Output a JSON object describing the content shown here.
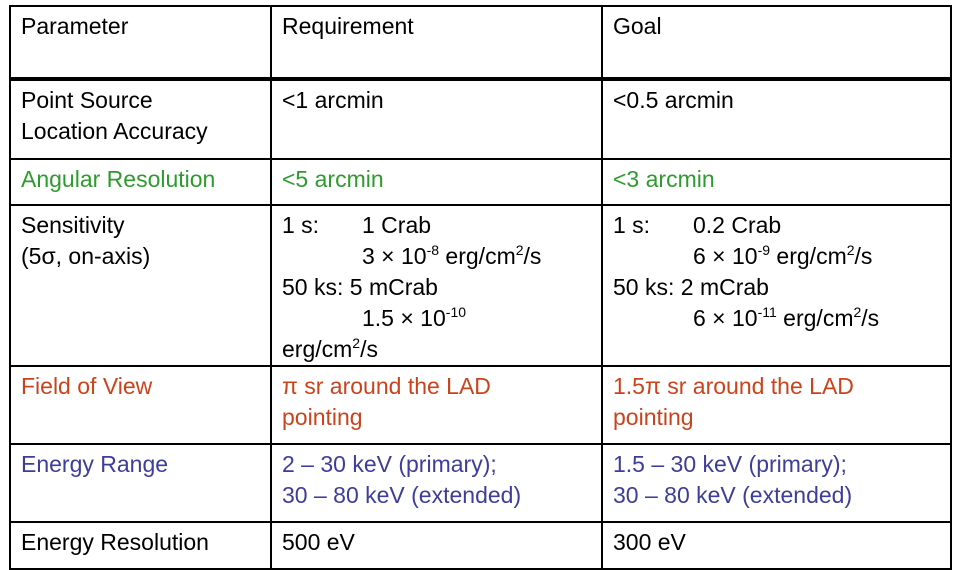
{
  "table": {
    "header": {
      "parameter": "Parameter",
      "requirement": "Requirement",
      "goal": "Goal"
    },
    "rows": {
      "point_source": {
        "parameter_lines": [
          "Point Source",
          "Location Accuracy"
        ],
        "requirement": "<1 arcmin",
        "goal": "<0.5 arcmin"
      },
      "angular": {
        "parameter": "Angular Resolution",
        "requirement": "<5 arcmin",
        "goal": "<3 arcmin"
      },
      "sensitivity": {
        "parameter_lines": [
          "Sensitivity",
          "(5σ, on-axis)"
        ],
        "requirement": {
          "l1_key": "1 s:",
          "l1_val": "1 Crab",
          "l2_pre": "3 × 10",
          "l2_exp": "-8",
          "l2_unit": " erg/cm",
          "l2_unit_exp": "2",
          "l2_post": "/s",
          "l3_key": "50 ks:",
          "l3_val": "5 mCrab",
          "l4_pre": "1.5 × 10",
          "l4_exp": "-10",
          "l5_unit": "erg/cm",
          "l5_unit_exp": "2",
          "l5_post": "/s"
        },
        "goal": {
          "l1_key": "1 s:",
          "l1_val": "0.2 Crab",
          "l2_pre": "6 × 10",
          "l2_exp": "-9",
          "l2_unit": " erg/cm",
          "l2_unit_exp": "2",
          "l2_post": "/s",
          "l3_key": "50 ks:",
          "l3_val": "2 mCrab",
          "l4_pre": "6 × 10",
          "l4_exp": "-11",
          "l4_unit": " erg/cm",
          "l4_unit_exp": "2",
          "l4_post": "/s"
        }
      },
      "fov": {
        "parameter": "Field of View",
        "requirement_lines": [
          "π sr around the LAD",
          "pointing"
        ],
        "goal_lines": [
          "1.5π sr around the LAD",
          "pointing"
        ]
      },
      "energy_range": {
        "parameter": "Energy Range",
        "requirement_lines": [
          "2 – 30 keV (primary);",
          "30 – 80 keV (extended)"
        ],
        "goal_lines": [
          "1.5 – 30 keV (primary);",
          "30 – 80 keV (extended)"
        ]
      },
      "energy_resolution": {
        "parameter": "Energy Resolution",
        "requirement": "500 eV",
        "goal": "300 eV"
      }
    },
    "colors": {
      "angular_row": "#2e9b2e",
      "fov_row": "#c9441c",
      "energy_range_row": "#3d3d9a",
      "default_text": "#000000"
    }
  }
}
